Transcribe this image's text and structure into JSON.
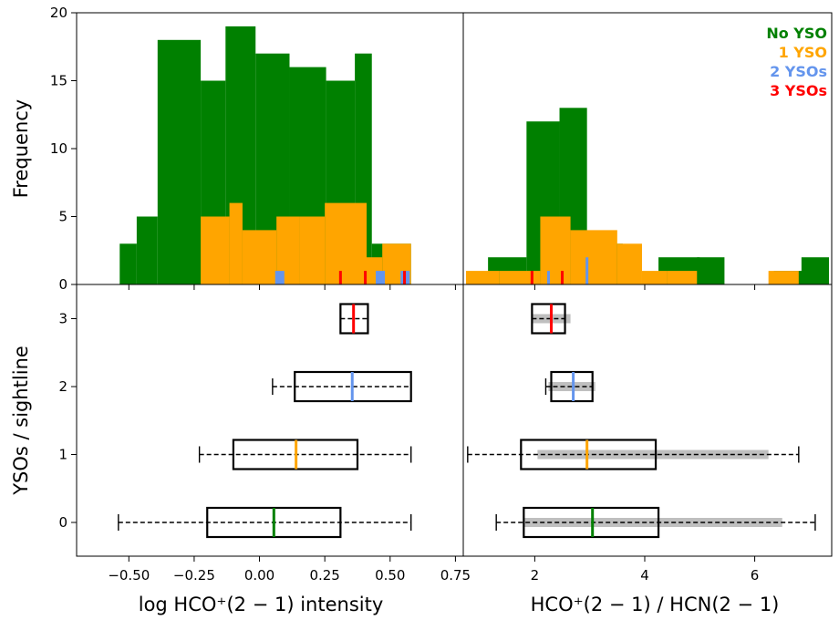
{
  "colors": {
    "No YSO": "#008000",
    "1 YSO": "#FFA500",
    "2 YSOs": "#6495ED",
    "3 YSOs": "#FF0000",
    "box": "#000000",
    "whisker": "#000000",
    "gray_bar": "#BFBFBF"
  },
  "legend": [
    "No YSO",
    "1 YSO",
    "2 YSOs",
    "3 YSOs"
  ],
  "chart_data": [
    {
      "id": "hist_intensity",
      "type": "bar",
      "ylabel": "Frequency",
      "xlim": [
        -0.7,
        0.78
      ],
      "ylim": [
        0,
        20
      ],
      "yticks": [
        0,
        5,
        10,
        15,
        20
      ],
      "series": [
        {
          "name": "No YSO",
          "bins": [
            [
              -0.535,
              -0.47,
              3
            ],
            [
              -0.47,
              -0.39,
              5
            ],
            [
              -0.39,
              -0.225,
              18
            ],
            [
              -0.225,
              -0.13,
              15
            ],
            [
              -0.13,
              -0.015,
              19
            ],
            [
              -0.015,
              0.115,
              17
            ],
            [
              -0.115,
              0.0,
              0
            ],
            [
              0.115,
              0.255,
              16
            ],
            [
              0.255,
              0.365,
              15
            ],
            [
              0.365,
              0.43,
              17
            ],
            [
              0.43,
              0.58,
              3
            ]
          ]
        },
        {
          "name": "1 YSO",
          "bins": [
            [
              -0.225,
              -0.115,
              5
            ],
            [
              -0.115,
              -0.065,
              6
            ],
            [
              -0.065,
              0.065,
              4
            ],
            [
              0.065,
              0.155,
              5
            ],
            [
              0.155,
              0.25,
              5
            ],
            [
              0.25,
              0.41,
              6
            ],
            [
              0.41,
              0.47,
              2
            ],
            [
              0.47,
              0.58,
              3
            ]
          ]
        },
        {
          "name": "2 YSOs",
          "bins": [
            [
              0.06,
              0.095,
              1
            ],
            [
              0.445,
              0.48,
              1
            ],
            [
              0.54,
              0.575,
              1
            ]
          ]
        },
        {
          "name": "3 YSOs",
          "lines": [
            [
              0.31,
              1
            ],
            [
              0.405,
              1
            ],
            [
              0.555,
              1
            ]
          ]
        }
      ]
    },
    {
      "id": "hist_ratio",
      "type": "bar",
      "xlim": [
        0.7,
        7.4
      ],
      "ylim": [
        0,
        20
      ],
      "series": [
        {
          "name": "No YSO",
          "bins": [
            [
              1.15,
              1.85,
              2
            ],
            [
              1.85,
              2.45,
              12
            ],
            [
              2.45,
              2.95,
              13
            ],
            [
              2.95,
              3.6,
              3
            ],
            [
              3.6,
              4.25,
              0
            ],
            [
              4.25,
              5.0,
              2
            ],
            [
              4.95,
              5.45,
              2
            ],
            [
              6.35,
              6.9,
              1
            ],
            [
              6.85,
              7.35,
              2
            ]
          ]
        },
        {
          "name": "1 YSO",
          "bins": [
            [
              0.75,
              1.35,
              1
            ],
            [
              1.35,
              2.1,
              1
            ],
            [
              2.1,
              2.65,
              5
            ],
            [
              2.65,
              3.5,
              4
            ],
            [
              3.5,
              3.95,
              3
            ],
            [
              3.95,
              4.4,
              1
            ],
            [
              4.4,
              4.95,
              1
            ],
            [
              6.25,
              6.8,
              1
            ]
          ]
        },
        {
          "name": "2 YSOs",
          "lines": [
            [
              2.25,
              1
            ],
            [
              2.95,
              2
            ]
          ]
        },
        {
          "name": "3 YSOs",
          "lines": [
            [
              1.95,
              1
            ],
            [
              2.5,
              1
            ]
          ]
        }
      ]
    },
    {
      "id": "box_intensity",
      "type": "boxplot",
      "xlabel": "log HCO⁺(2 − 1) intensity",
      "ylabel": "YSOs / sightline",
      "xlim": [
        -0.7,
        0.78
      ],
      "xticks": [
        -0.5,
        -0.25,
        0.0,
        0.25,
        0.5,
        0.75
      ],
      "xticklabels": [
        "−0.50",
        "−0.25",
        "0.00",
        "0.25",
        "0.50",
        "0.75"
      ],
      "yticks": [
        0,
        1,
        2,
        3
      ],
      "boxes": [
        {
          "name": "No YSO",
          "y": 0,
          "whislo": -0.54,
          "q1": -0.2,
          "med": 0.055,
          "q3": 0.31,
          "whishi": 0.58
        },
        {
          "name": "1 YSO",
          "y": 1,
          "whislo": -0.23,
          "q1": -0.1,
          "med": 0.14,
          "q3": 0.375,
          "whishi": 0.58
        },
        {
          "name": "2 YSOs",
          "y": 2,
          "whislo": 0.05,
          "q1": 0.135,
          "med": 0.355,
          "q3": 0.58,
          "whishi": 0.58
        },
        {
          "name": "3 YSOs",
          "y": 3,
          "whislo": 0.31,
          "q1": 0.31,
          "med": 0.36,
          "q3": 0.415,
          "whishi": 0.415
        }
      ]
    },
    {
      "id": "box_ratio",
      "type": "boxplot",
      "xlabel": "HCO⁺(2 − 1)  /  HCN(2 − 1)",
      "xlim": [
        0.7,
        7.4
      ],
      "xticks": [
        2,
        4,
        6
      ],
      "xticklabels": [
        "2",
        "4",
        "6"
      ],
      "boxes": [
        {
          "name": "No YSO",
          "y": 0,
          "whislo": 1.3,
          "q1": 1.8,
          "med": 3.05,
          "q3": 4.25,
          "whishi": 7.1,
          "range": [
            1.8,
            6.5
          ]
        },
        {
          "name": "1 YSO",
          "y": 1,
          "whislo": 0.78,
          "q1": 1.75,
          "med": 2.95,
          "q3": 4.2,
          "whishi": 6.8,
          "range": [
            2.05,
            6.25
          ]
        },
        {
          "name": "2 YSOs",
          "y": 2,
          "whislo": 2.2,
          "q1": 2.3,
          "med": 2.7,
          "q3": 3.05,
          "whishi": 3.05,
          "range": [
            2.25,
            3.1
          ]
        },
        {
          "name": "3 YSOs",
          "y": 3,
          "whislo": 1.95,
          "q1": 1.95,
          "med": 2.3,
          "q3": 2.55,
          "whishi": 2.55,
          "range": [
            1.95,
            2.65
          ]
        }
      ]
    }
  ]
}
